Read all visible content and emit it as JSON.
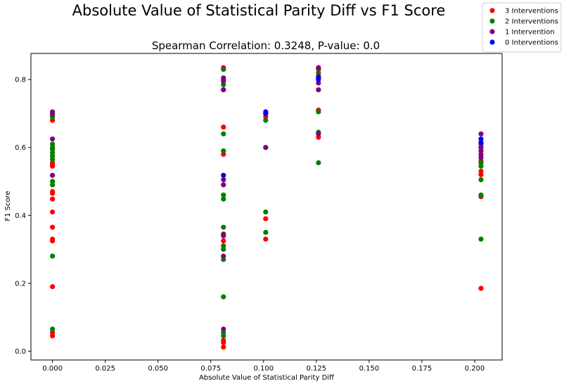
{
  "chart_data": {
    "type": "scatter",
    "title": "Absolute Value of Statistical Parity Diff vs F1 Score",
    "subtitle": "Spearman Correlation: 0.3248, P-value: 0.0",
    "xlabel": "Absolute Value of Statistical Parity Diff",
    "ylabel": "F1 Score",
    "xlim": [
      -0.0102,
      0.213
    ],
    "ylim": [
      -0.026,
      0.877
    ],
    "x_ticks": [
      0.0,
      0.025,
      0.05,
      0.075,
      0.1,
      0.125,
      0.15,
      0.175,
      0.2
    ],
    "x_tick_labels": [
      "0.000",
      "0.025",
      "0.050",
      "0.075",
      "0.100",
      "0.125",
      "0.150",
      "0.175",
      "0.200"
    ],
    "y_ticks": [
      0.0,
      0.2,
      0.4,
      0.6,
      0.8
    ],
    "y_tick_labels": [
      "0.0",
      "0.2",
      "0.4",
      "0.6",
      "0.8"
    ],
    "grid": false,
    "legend_position": "top-right",
    "series": [
      {
        "name": "3 Interventions",
        "color": "#ff0000",
        "points": [
          [
            0.0,
            0.045
          ],
          [
            0.0,
            0.055
          ],
          [
            0.0,
            0.19
          ],
          [
            0.0,
            0.325
          ],
          [
            0.0,
            0.33
          ],
          [
            0.0,
            0.365
          ],
          [
            0.0,
            0.41
          ],
          [
            0.0,
            0.448
          ],
          [
            0.0,
            0.465
          ],
          [
            0.0,
            0.47
          ],
          [
            0.0,
            0.545
          ],
          [
            0.0,
            0.548
          ],
          [
            0.0,
            0.555
          ],
          [
            0.0,
            0.68
          ],
          [
            0.081,
            0.012
          ],
          [
            0.081,
            0.025
          ],
          [
            0.081,
            0.032
          ],
          [
            0.081,
            0.325
          ],
          [
            0.081,
            0.58
          ],
          [
            0.081,
            0.66
          ],
          [
            0.081,
            0.8
          ],
          [
            0.081,
            0.835
          ],
          [
            0.101,
            0.33
          ],
          [
            0.101,
            0.39
          ],
          [
            0.101,
            0.69
          ],
          [
            0.126,
            0.63
          ],
          [
            0.126,
            0.71
          ],
          [
            0.126,
            0.83
          ],
          [
            0.203,
            0.185
          ],
          [
            0.203,
            0.455
          ],
          [
            0.203,
            0.52
          ],
          [
            0.203,
            0.53
          ],
          [
            0.203,
            0.56
          ],
          [
            0.203,
            0.6
          ]
        ]
      },
      {
        "name": "2 Interventions",
        "color": "#008000",
        "points": [
          [
            0.0,
            0.065
          ],
          [
            0.0,
            0.28
          ],
          [
            0.0,
            0.49
          ],
          [
            0.0,
            0.5
          ],
          [
            0.0,
            0.565
          ],
          [
            0.0,
            0.575
          ],
          [
            0.0,
            0.585
          ],
          [
            0.0,
            0.595
          ],
          [
            0.0,
            0.6
          ],
          [
            0.0,
            0.61
          ],
          [
            0.0,
            0.69
          ],
          [
            0.0,
            0.695
          ],
          [
            0.081,
            0.045
          ],
          [
            0.081,
            0.055
          ],
          [
            0.081,
            0.16
          ],
          [
            0.081,
            0.27
          ],
          [
            0.081,
            0.3
          ],
          [
            0.081,
            0.31
          ],
          [
            0.081,
            0.365
          ],
          [
            0.081,
            0.448
          ],
          [
            0.081,
            0.46
          ],
          [
            0.081,
            0.59
          ],
          [
            0.081,
            0.64
          ],
          [
            0.081,
            0.77
          ],
          [
            0.081,
            0.785
          ],
          [
            0.081,
            0.83
          ],
          [
            0.101,
            0.35
          ],
          [
            0.101,
            0.41
          ],
          [
            0.101,
            0.6
          ],
          [
            0.101,
            0.68
          ],
          [
            0.126,
            0.555
          ],
          [
            0.126,
            0.645
          ],
          [
            0.126,
            0.705
          ],
          [
            0.126,
            0.82
          ],
          [
            0.203,
            0.33
          ],
          [
            0.203,
            0.46
          ],
          [
            0.203,
            0.505
          ],
          [
            0.203,
            0.545
          ],
          [
            0.203,
            0.555
          ]
        ]
      },
      {
        "name": "1 Intervention",
        "color": "#800080",
        "points": [
          [
            0.0,
            0.518
          ],
          [
            0.0,
            0.625
          ],
          [
            0.0,
            0.7
          ],
          [
            0.0,
            0.705
          ],
          [
            0.081,
            0.065
          ],
          [
            0.081,
            0.28
          ],
          [
            0.081,
            0.34
          ],
          [
            0.081,
            0.345
          ],
          [
            0.081,
            0.49
          ],
          [
            0.081,
            0.505
          ],
          [
            0.081,
            0.77
          ],
          [
            0.081,
            0.795
          ],
          [
            0.081,
            0.805
          ],
          [
            0.101,
            0.6
          ],
          [
            0.101,
            0.7
          ],
          [
            0.126,
            0.64
          ],
          [
            0.126,
            0.77
          ],
          [
            0.126,
            0.79
          ],
          [
            0.126,
            0.81
          ],
          [
            0.126,
            0.835
          ],
          [
            0.203,
            0.57
          ],
          [
            0.203,
            0.58
          ],
          [
            0.203,
            0.59
          ],
          [
            0.203,
            0.6
          ],
          [
            0.203,
            0.61
          ],
          [
            0.203,
            0.64
          ]
        ]
      },
      {
        "name": "0 Interventions",
        "color": "#0000ff",
        "points": [
          [
            0.081,
            0.518
          ],
          [
            0.101,
            0.7
          ],
          [
            0.101,
            0.705
          ],
          [
            0.126,
            0.8
          ],
          [
            0.126,
            0.805
          ],
          [
            0.203,
            0.615
          ],
          [
            0.203,
            0.625
          ]
        ]
      }
    ]
  }
}
